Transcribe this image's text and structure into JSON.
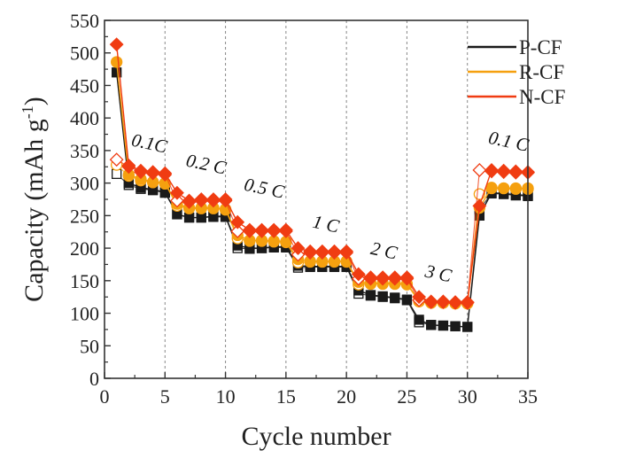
{
  "chart_data": {
    "type": "scatter",
    "title": "",
    "xlabel": "Cycle number",
    "ylabel_main": "Capacity (mAh g",
    "ylabel_sup": "-1",
    "ylabel_close": ")",
    "xlim": [
      0,
      35
    ],
    "ylim": [
      0,
      550
    ],
    "xticks": [
      0,
      5,
      10,
      15,
      20,
      25,
      30,
      35
    ],
    "yticks": [
      0,
      50,
      100,
      150,
      200,
      250,
      300,
      350,
      400,
      450,
      500,
      550
    ],
    "grid": "vertical dashed lines at x = 5, 10, 15, 20, 25, 30",
    "vlines": [
      5,
      10,
      15,
      20,
      25,
      30
    ],
    "legend_position": "top-right",
    "rate_labels": [
      {
        "text": "0.1C",
        "x": 3.6,
        "y": 352
      },
      {
        "text": "0.2 C",
        "x": 8.3,
        "y": 320
      },
      {
        "text": "0.5 C",
        "x": 13.1,
        "y": 283
      },
      {
        "text": "1 C",
        "x": 18.2,
        "y": 228
      },
      {
        "text": "2 C",
        "x": 23.0,
        "y": 187
      },
      {
        "text": "3 C",
        "x": 27.5,
        "y": 152
      },
      {
        "text": "0.1 C",
        "x": 33.3,
        "y": 355
      }
    ],
    "x": [
      1,
      2,
      3,
      4,
      5,
      6,
      7,
      8,
      9,
      10,
      11,
      12,
      13,
      14,
      15,
      16,
      17,
      18,
      19,
      20,
      21,
      22,
      23,
      24,
      25,
      26,
      27,
      28,
      29,
      30,
      31,
      32,
      33,
      34,
      35
    ],
    "series": [
      {
        "name": "P-CF",
        "color": "#1a1a1a",
        "marker": "square",
        "discharge": [
          470,
          300,
          293,
          290,
          286,
          252,
          247,
          247,
          249,
          249,
          204,
          200,
          200,
          202,
          202,
          173,
          172,
          172,
          172,
          172,
          135,
          128,
          126,
          124,
          121,
          90,
          82,
          81,
          80,
          79,
          250,
          285,
          284,
          282,
          281
        ],
        "charge": [
          314,
          297,
          291,
          289,
          285,
          252,
          247,
          247,
          248,
          248,
          200,
          199,
          200,
          201,
          201,
          170,
          171,
          171,
          171,
          171,
          130,
          127,
          125,
          123,
          120,
          86,
          82,
          81,
          80,
          79,
          260,
          284,
          283,
          281,
          280
        ]
      },
      {
        "name": "R-CF",
        "color": "#f5a00f",
        "marker": "circle",
        "discharge": [
          486,
          313,
          306,
          302,
          300,
          268,
          262,
          262,
          262,
          260,
          220,
          212,
          212,
          211,
          210,
          183,
          180,
          180,
          180,
          180,
          148,
          146,
          146,
          146,
          145,
          120,
          116,
          116,
          115,
          115,
          262,
          293,
          292,
          292,
          292
        ],
        "charge": [
          328,
          311,
          304,
          301,
          299,
          265,
          261,
          261,
          261,
          259,
          215,
          211,
          211,
          210,
          209,
          178,
          179,
          179,
          179,
          179,
          144,
          145,
          145,
          145,
          144,
          118,
          116,
          116,
          115,
          115,
          283,
          292,
          292,
          291,
          291
        ]
      },
      {
        "name": "N-CF",
        "color": "#f03c12",
        "marker": "diamond",
        "discharge": [
          513,
          327,
          319,
          317,
          315,
          285,
          273,
          275,
          275,
          275,
          240,
          228,
          228,
          228,
          228,
          200,
          195,
          195,
          195,
          195,
          160,
          155,
          155,
          155,
          155,
          125,
          118,
          118,
          117,
          117,
          265,
          320,
          319,
          318,
          317
        ],
        "charge": [
          336,
          325,
          317,
          315,
          313,
          273,
          271,
          273,
          273,
          273,
          226,
          226,
          226,
          226,
          226,
          190,
          193,
          193,
          193,
          193,
          153,
          153,
          153,
          153,
          153,
          120,
          117,
          117,
          116,
          116,
          320,
          318,
          317,
          316,
          316
        ]
      }
    ]
  }
}
